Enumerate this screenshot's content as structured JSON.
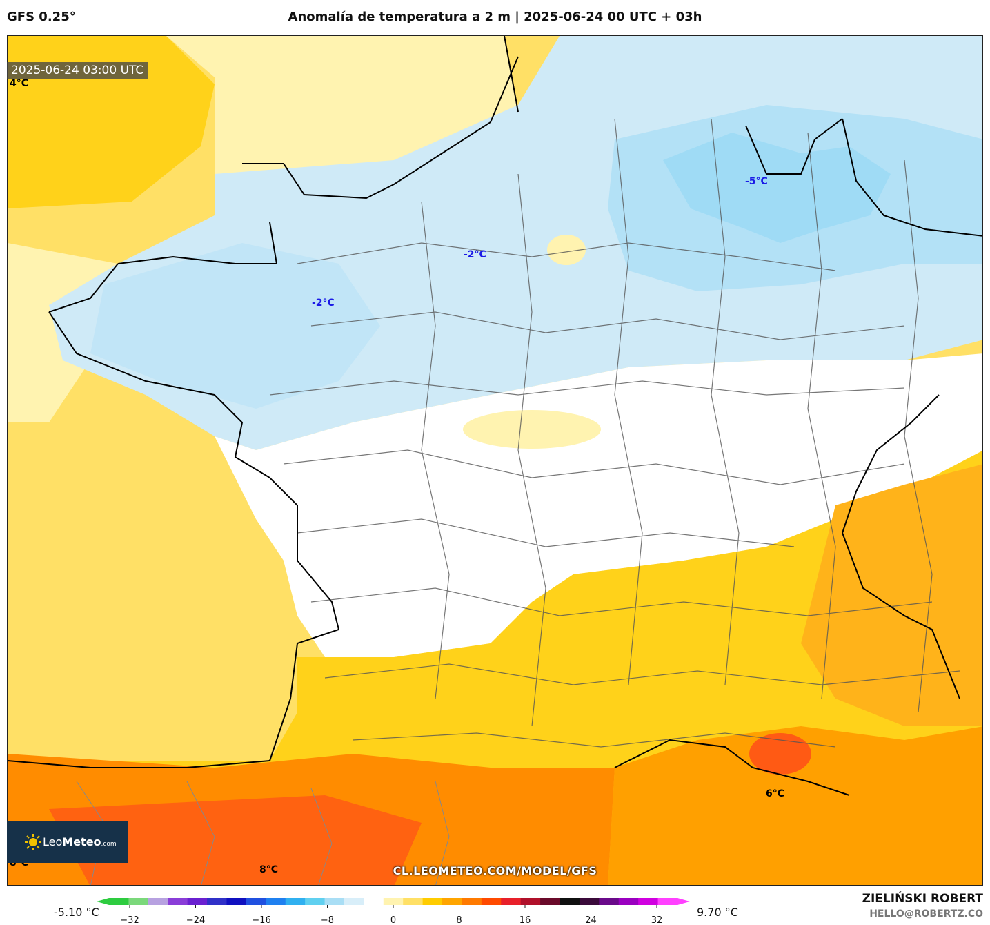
{
  "header": {
    "model": "GFS 0.25°",
    "title": "Anomalía de temperatura a 2 m | 2025-06-24 00 UTC + 03h"
  },
  "map": {
    "timestamp": "2025-06-24 03:00 UTC",
    "labels": [
      {
        "id": "nw-corner",
        "text": "4°C",
        "color": "#000000"
      },
      {
        "id": "northeast",
        "text": "-5°C",
        "color": "#1a1ae6"
      },
      {
        "id": "paris",
        "text": "-2°C",
        "color": "#1a1ae6"
      },
      {
        "id": "west",
        "text": "-2°C",
        "color": "#1a1ae6"
      },
      {
        "id": "provence",
        "text": "6°C",
        "color": "#000000"
      },
      {
        "id": "pyrenees",
        "text": "8°C",
        "color": "#000000"
      },
      {
        "id": "sw-corner",
        "text": "8°C",
        "color": "#000000"
      }
    ],
    "watermark": "CL.LEOMETEO.COM/MODEL/GFS",
    "logo": {
      "brand_light": "Leo",
      "brand_bold": "Meteo",
      "suffix": ".com"
    }
  },
  "colorbar": {
    "min_label": "-5.10 °C",
    "max_label": "9.70 °C",
    "ticks": [
      "−32",
      "−24",
      "−16",
      "−8",
      "0",
      "8",
      "16",
      "24",
      "32"
    ],
    "colors": [
      "#2ecc40",
      "#7bd87b",
      "#b7a1e0",
      "#8a3dd8",
      "#6a20d0",
      "#3030c8",
      "#1010c0",
      "#2050e0",
      "#1f80f0",
      "#30b0f0",
      "#60d0f0",
      "#a9def5",
      "#d8eef9",
      "#ffffff",
      "#fff3b0",
      "#ffe066",
      "#ffcc00",
      "#ffa500",
      "#ff7a00",
      "#ff4a00",
      "#e8202a",
      "#b0102a",
      "#6a0a2a",
      "#101010",
      "#3a0a3a",
      "#6a0a8a",
      "#9a00c0",
      "#d000e0",
      "#ff40ff"
    ]
  },
  "footer": {
    "author": "ZIELIŃSKI ROBERT",
    "email": "HELLO@ROBERTZ.CO"
  }
}
